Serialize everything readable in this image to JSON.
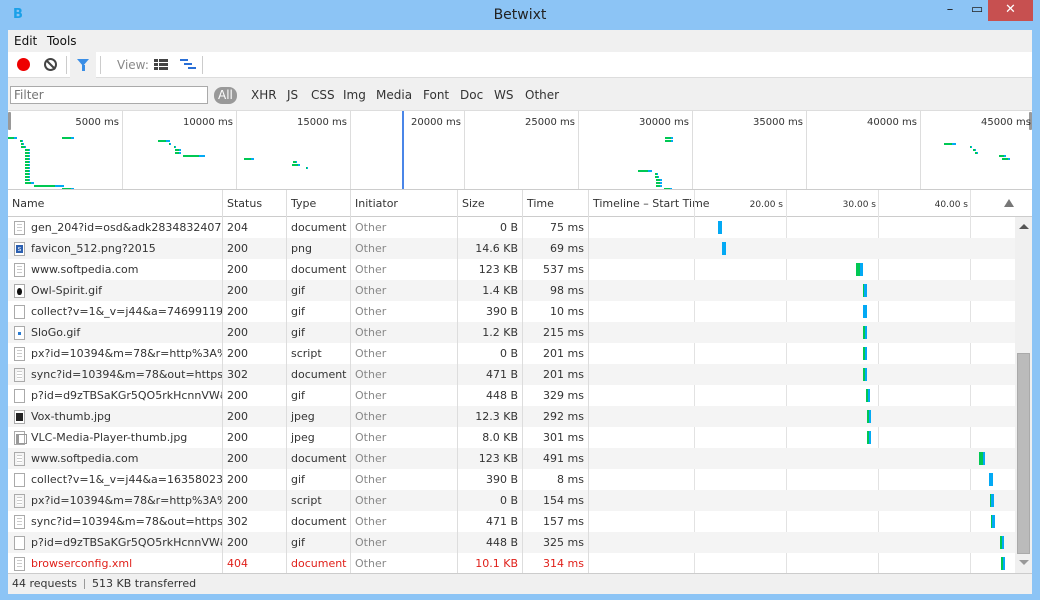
{
  "window": {
    "title": "Betwixt",
    "app_icon": "B",
    "minimize": "–",
    "maximize": "▭",
    "close": "✕"
  },
  "menu": [
    "Edit",
    "Tools"
  ],
  "toolbar": {
    "view_label": "View:"
  },
  "filter": {
    "placeholder": "Filter",
    "chips": [
      "All",
      "XHR",
      "JS",
      "CSS",
      "Img",
      "Media",
      "Font",
      "Doc",
      "WS",
      "Other"
    ],
    "active": "All"
  },
  "overview": {
    "labels": [
      "5000 ms",
      "10000 ms",
      "15000 ms",
      "20000 ms",
      "25000 ms",
      "30000 ms",
      "35000 ms",
      "40000 ms",
      "45000 ms"
    ],
    "marker_ms": 17300,
    "bars": [
      {
        "start": 0,
        "dur": 400,
        "lane": 1
      },
      {
        "start": 2370,
        "dur": 530,
        "lane": 1
      },
      {
        "start": 530,
        "dur": 90,
        "lane": 2
      },
      {
        "start": 570,
        "dur": 130,
        "lane": 3
      },
      {
        "start": 570,
        "dur": 220,
        "lane": 4
      },
      {
        "start": 750,
        "dur": 220,
        "lane": 5
      },
      {
        "start": 750,
        "dur": 220,
        "lane": 6
      },
      {
        "start": 750,
        "dur": 220,
        "lane": 7
      },
      {
        "start": 750,
        "dur": 220,
        "lane": 8
      },
      {
        "start": 750,
        "dur": 220,
        "lane": 9
      },
      {
        "start": 750,
        "dur": 220,
        "lane": 10
      },
      {
        "start": 750,
        "dur": 220,
        "lane": 11
      },
      {
        "start": 750,
        "dur": 220,
        "lane": 12
      },
      {
        "start": 750,
        "dur": 220,
        "lane": 13
      },
      {
        "start": 750,
        "dur": 220,
        "lane": 14
      },
      {
        "start": 750,
        "dur": 220,
        "lane": 15
      },
      {
        "start": 750,
        "dur": 400,
        "lane": 16
      },
      {
        "start": 1140,
        "dur": 1320,
        "lane": 17
      },
      {
        "start": 2370,
        "dur": 530,
        "lane": 18
      },
      {
        "start": 6580,
        "dur": 530,
        "lane": 2
      },
      {
        "start": 7060,
        "dur": 80,
        "lane": 3
      },
      {
        "start": 7280,
        "dur": 80,
        "lane": 4
      },
      {
        "start": 7320,
        "dur": 260,
        "lane": 5
      },
      {
        "start": 7320,
        "dur": 260,
        "lane": 6
      },
      {
        "start": 7680,
        "dur": 970,
        "lane": 7
      },
      {
        "start": 10350,
        "dur": 440,
        "lane": 8
      },
      {
        "start": 12500,
        "dur": 180,
        "lane": 9
      },
      {
        "start": 12460,
        "dur": 350,
        "lane": 10
      },
      {
        "start": 13070,
        "dur": 90,
        "lane": 11
      },
      {
        "start": 28820,
        "dur": 350,
        "lane": 1
      },
      {
        "start": 28820,
        "dur": 350,
        "lane": 2
      },
      {
        "start": 27630,
        "dur": 610,
        "lane": 12
      },
      {
        "start": 28380,
        "dur": 90,
        "lane": 13
      },
      {
        "start": 28380,
        "dur": 180,
        "lane": 14
      },
      {
        "start": 28420,
        "dur": 260,
        "lane": 15
      },
      {
        "start": 28420,
        "dur": 260,
        "lane": 16
      },
      {
        "start": 28420,
        "dur": 260,
        "lane": 17
      },
      {
        "start": 28770,
        "dur": 350,
        "lane": 18
      },
      {
        "start": 41050,
        "dur": 530,
        "lane": 3
      },
      {
        "start": 42190,
        "dur": 90,
        "lane": 4
      },
      {
        "start": 42320,
        "dur": 130,
        "lane": 5
      },
      {
        "start": 42410,
        "dur": 130,
        "lane": 6
      },
      {
        "start": 43460,
        "dur": 310,
        "lane": 7
      },
      {
        "start": 43600,
        "dur": 350,
        "lane": 8
      }
    ]
  },
  "columns": {
    "name": "Name",
    "status": "Status",
    "type": "Type",
    "initiator": "Initiator",
    "size": "Size",
    "time": "Time",
    "timeline": "Timeline – Start Time"
  },
  "timeline_ticks": [
    "20.00 s",
    "30.00 s",
    "40.00 s"
  ],
  "colors": {
    "waiting": "#00c853",
    "receiving": "#03a9f4",
    "error": "#e0201a"
  },
  "requests": [
    {
      "name": "gen_204?id=osd&adk2834832407=...",
      "status": "204",
      "type": "document",
      "initiator": "Other",
      "size": "0 B",
      "time": "75 ms",
      "icon": "doc",
      "start_s": 12.6,
      "green": 0
    },
    {
      "name": "favicon_512.png?2015",
      "status": "200",
      "type": "png",
      "initiator": "Other",
      "size": "14.6 KB",
      "time": "69 ms",
      "icon": "png",
      "start_s": 13.0,
      "green": 0
    },
    {
      "name": "www.softpedia.com",
      "status": "200",
      "type": "document",
      "initiator": "Other",
      "size": "123 KB",
      "time": "537 ms",
      "icon": "doc",
      "start_s": 27.6,
      "green": 0.6
    },
    {
      "name": "Owl-Spirit.gif",
      "status": "200",
      "type": "gif",
      "initiator": "Other",
      "size": "1.4 KB",
      "time": "98 ms",
      "icon": "owl",
      "start_s": 28.4,
      "green": 0.3
    },
    {
      "name": "collect?v=1&_v=j44&a=746991199...",
      "status": "200",
      "type": "gif",
      "initiator": "Other",
      "size": "390 B",
      "time": "10 ms",
      "icon": "blank",
      "start_s": 28.4,
      "green": 0
    },
    {
      "name": "SloGo.gif",
      "status": "200",
      "type": "gif",
      "initiator": "Other",
      "size": "1.2 KB",
      "time": "215 ms",
      "icon": "slogo",
      "start_s": 28.4,
      "green": 0.5
    },
    {
      "name": "px?id=10394&m=78&r=http%3A%2...",
      "status": "200",
      "type": "script",
      "initiator": "Other",
      "size": "0 B",
      "time": "201 ms",
      "icon": "doc",
      "start_s": 28.4,
      "green": 0.5
    },
    {
      "name": "sync?id=10394&m=78&out=https://...",
      "status": "302",
      "type": "document",
      "initiator": "Other",
      "size": "471 B",
      "time": "201 ms",
      "icon": "doc",
      "start_s": 28.4,
      "green": 0.5
    },
    {
      "name": "p?id=d9zTBSaKGr5QO5rkHcnnVW&l...",
      "status": "200",
      "type": "gif",
      "initiator": "Other",
      "size": "448 B",
      "time": "329 ms",
      "icon": "blank",
      "start_s": 28.7,
      "green": 0.6
    },
    {
      "name": "Vox-thumb.jpg",
      "status": "200",
      "type": "jpeg",
      "initiator": "Other",
      "size": "12.3 KB",
      "time": "292 ms",
      "icon": "vox",
      "start_s": 28.8,
      "green": 0.5
    },
    {
      "name": "VLC-Media-Player-thumb.jpg",
      "status": "200",
      "type": "jpeg",
      "initiator": "Other",
      "size": "8.0 KB",
      "time": "301 ms",
      "icon": "vlc",
      "start_s": 28.8,
      "green": 0.5
    },
    {
      "name": "www.softpedia.com",
      "status": "200",
      "type": "document",
      "initiator": "Other",
      "size": "123 KB",
      "time": "491 ms",
      "icon": "doc",
      "start_s": 41.0,
      "green": 0.6
    },
    {
      "name": "collect?v=1&_v=j44&a=1635802364...",
      "status": "200",
      "type": "gif",
      "initiator": "Other",
      "size": "390 B",
      "time": "8 ms",
      "icon": "blank",
      "start_s": 42.1,
      "green": 0
    },
    {
      "name": "px?id=10394&m=78&r=http%3A%2...",
      "status": "200",
      "type": "script",
      "initiator": "Other",
      "size": "0 B",
      "time": "154 ms",
      "icon": "doc",
      "start_s": 42.2,
      "green": 0.3
    },
    {
      "name": "sync?id=10394&m=78&out=https://...",
      "status": "302",
      "type": "document",
      "initiator": "Other",
      "size": "471 B",
      "time": "157 ms",
      "icon": "doc",
      "start_s": 42.3,
      "green": 0.3
    },
    {
      "name": "p?id=d9zTBSaKGr5QO5rkHcnnVW&l...",
      "status": "200",
      "type": "gif",
      "initiator": "Other",
      "size": "448 B",
      "time": "325 ms",
      "icon": "blank",
      "start_s": 43.3,
      "green": 0.5
    },
    {
      "name": "browserconfig.xml",
      "status": "404",
      "type": "document",
      "initiator": "Other",
      "size": "10.1 KB",
      "time": "314 ms",
      "icon": "doc",
      "start_s": 43.4,
      "green": 0.5,
      "error": true
    }
  ],
  "statusbar": {
    "requests": "44 requests",
    "transferred": "513 KB transferred"
  }
}
